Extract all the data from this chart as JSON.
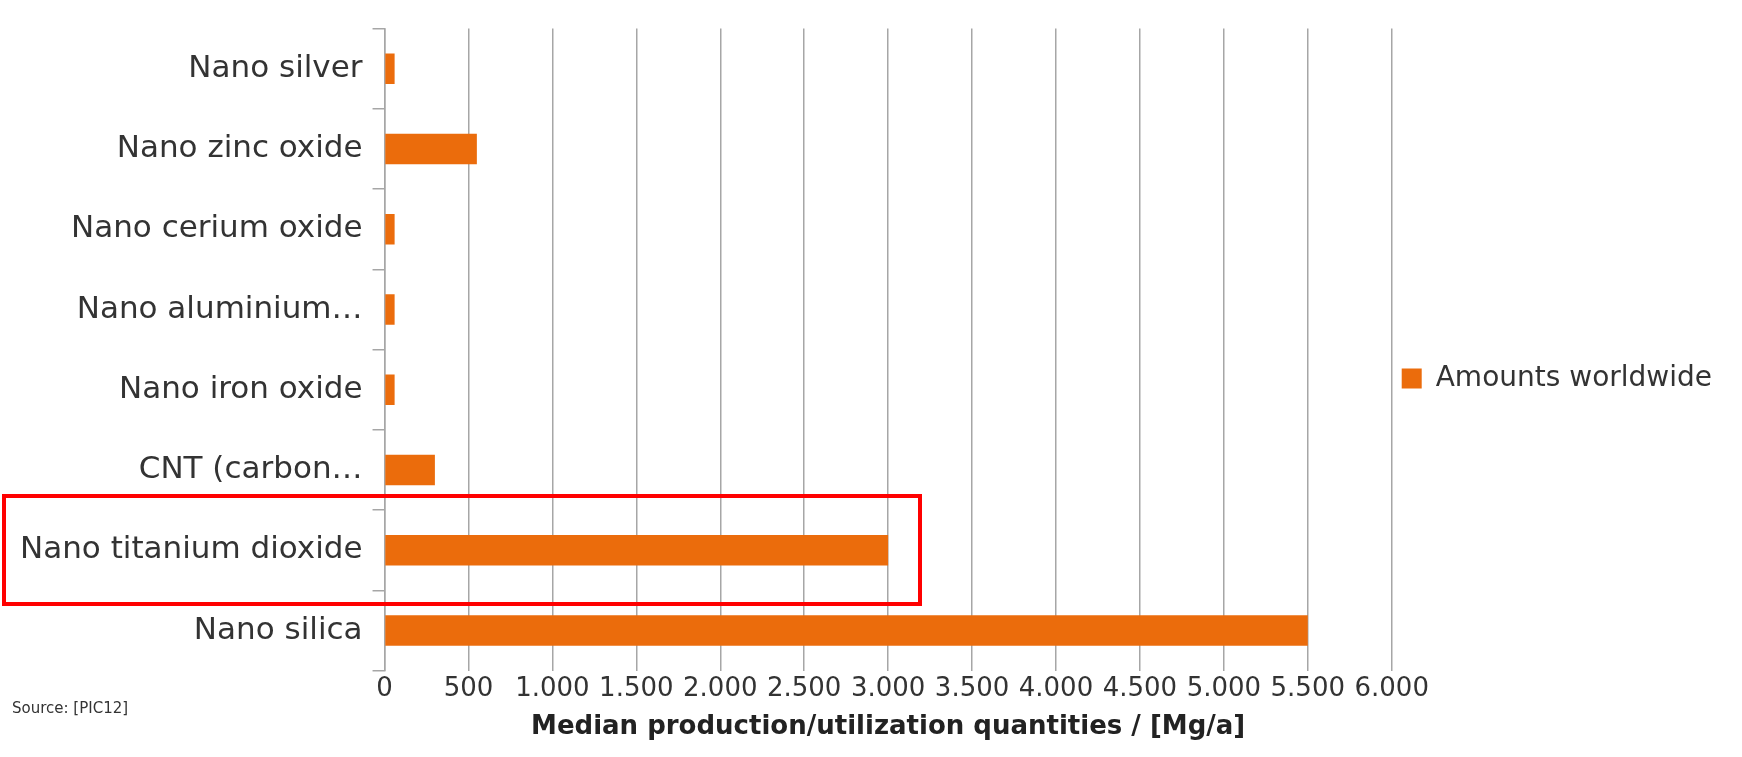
{
  "chart_data": {
    "type": "bar",
    "orientation": "horizontal",
    "xlabel": "Median production/utilization quantities / [Mg/a]",
    "categories": [
      "Nano silver",
      "Nano zinc oxide",
      "Nano cerium oxide",
      "Nano aluminium…",
      "Nano iron oxide",
      "CNT (carbon…",
      "Nano titanium dioxide",
      "Nano silica"
    ],
    "series": [
      {
        "name": "Amounts worldwide",
        "color": "#eb6c0c",
        "values": [
          60,
          550,
          60,
          60,
          60,
          300,
          3000,
          5500
        ]
      }
    ],
    "xlim": [
      0,
      6000
    ],
    "xticks": [
      0,
      500,
      {
        "value": 1000,
        "label": "1.000"
      },
      {
        "value": 1500,
        "label": "1.500"
      },
      {
        "value": 2000,
        "label": "2.000"
      },
      {
        "value": 2500,
        "label": "2.500"
      },
      {
        "value": 3000,
        "label": "3.000"
      },
      {
        "value": 3500,
        "label": "3.500"
      },
      {
        "value": 4000,
        "label": "4.000"
      },
      {
        "value": 4500,
        "label": "4.500"
      },
      {
        "value": 5000,
        "label": "5.000"
      },
      {
        "value": 5500,
        "label": "5.500"
      },
      {
        "value": 6000,
        "label": "6.000"
      }
    ],
    "grid": "x",
    "legend": "right",
    "annotations": [
      "Source: [PIC12]"
    ]
  }
}
